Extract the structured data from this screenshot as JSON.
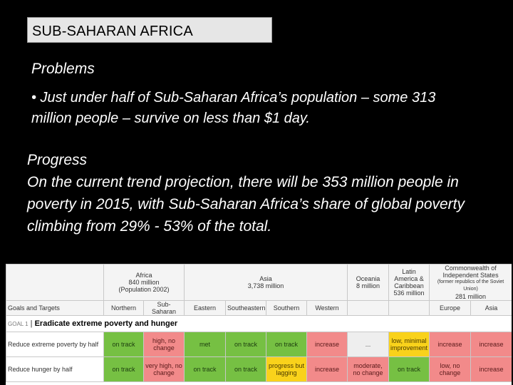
{
  "slide": {
    "title": "SUB-SAHARAN AFRICA",
    "problems_heading": "Problems",
    "problems_text": "• Just under half of Sub-Saharan Africa’s population – some 313 million people – survive on less than $1 day.",
    "progress_heading": "Progress",
    "progress_text": "On the current trend projection, there will be 353 million people in poverty in 2015, with Sub-Saharan Africa’s share of global poverty climbing from 29% - 53% of the total."
  },
  "table": {
    "regions": {
      "africa_name": "Africa",
      "africa_pop": "840 million",
      "africa_note": "(Population 2002)",
      "asia_name": "Asia",
      "asia_pop": "3,738 million",
      "oceania_name": "Oceania",
      "oceania_pop": "8 million",
      "latam_name": "Latin America & Caribbean",
      "latam_pop": "536 million",
      "cis_name": "Commonwealth of Independent States",
      "cis_note": "(former republics of the Soviet Union)",
      "cis_pop": "281 million"
    },
    "subregion_label": "Goals and Targets",
    "subregions": [
      "Northern",
      "Sub-Saharan",
      "Eastern",
      "Southeastern",
      "Southern",
      "Western",
      "Europe",
      "Asia"
    ],
    "goal_num": "GOAL 1",
    "goal_title": "Eradicate extreme poverty and hunger",
    "rows": [
      {
        "label": "Reduce extreme poverty by half",
        "cells": [
          "on track",
          "high, no change",
          "met",
          "on track",
          "on track",
          "increase",
          "...",
          "low, minimal improvement",
          "increase",
          "increase"
        ]
      },
      {
        "label": "Reduce hunger by half",
        "cells": [
          "on track",
          "very high, no change",
          "on track",
          "on track",
          "progress but lagging",
          "increase",
          "moderate, no change",
          "on track",
          "low, no change",
          "increase"
        ]
      }
    ],
    "status_colors": {
      "green": "#76c043",
      "red": "#f28a8a",
      "yellow": "#f9d21b",
      "grey": "#eeeeee"
    }
  }
}
